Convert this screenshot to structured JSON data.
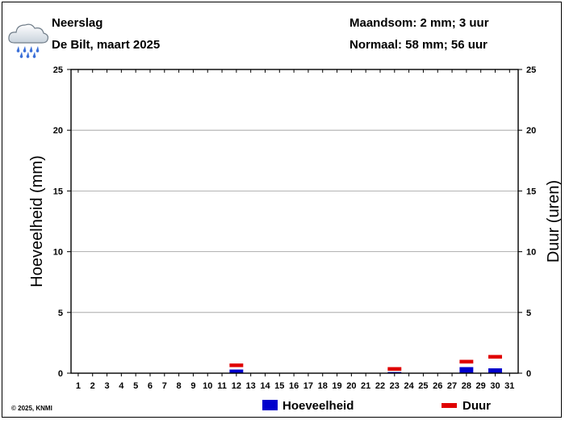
{
  "header": {
    "title": "Neerslag",
    "subtitle": "De Bilt, maart 2025",
    "month_sum": "Maandsom: 2 mm; 3 uur",
    "normal": "Normaal: 58 mm; 56 uur",
    "icon": "rain-cloud-icon"
  },
  "footer": {
    "copyright": "© 2025, KNMI"
  },
  "legend": {
    "amount_label": "Hoeveelheid",
    "duration_label": "Duur"
  },
  "colors": {
    "amount": "#0000cc",
    "duration": "#e00000",
    "grid": "#9a9a9a"
  },
  "chart_data": {
    "type": "bar",
    "xlabel": "",
    "ylabel_left": "Hoeveelheid (mm)",
    "ylabel_right": "Duur (uren)",
    "ylim": [
      0,
      25
    ],
    "y_ticks": [
      0,
      5,
      10,
      15,
      20,
      25
    ],
    "grid": true,
    "legend_position": "bottom",
    "categories": [
      "1",
      "2",
      "3",
      "4",
      "5",
      "6",
      "7",
      "8",
      "9",
      "10",
      "11",
      "12",
      "13",
      "14",
      "15",
      "16",
      "17",
      "18",
      "19",
      "20",
      "21",
      "22",
      "23",
      "24",
      "25",
      "26",
      "27",
      "28",
      "29",
      "30",
      "31"
    ],
    "series": [
      {
        "name": "Hoeveelheid",
        "unit": "mm",
        "values": [
          0,
          0,
          0,
          0,
          0,
          0,
          0,
          0,
          0,
          0,
          0,
          0.3,
          0,
          0,
          0,
          0,
          0,
          0,
          0,
          0,
          0,
          0,
          0.1,
          0,
          0,
          0,
          0,
          0.5,
          0,
          0.4,
          0
        ]
      },
      {
        "name": "Duur",
        "unit": "uren",
        "values": [
          0,
          0,
          0,
          0,
          0,
          0,
          0,
          0,
          0,
          0,
          0,
          0.6,
          0,
          0,
          0,
          0,
          0,
          0,
          0,
          0,
          0,
          0,
          0.3,
          0,
          0,
          0,
          0,
          0.9,
          0,
          1.3,
          0
        ]
      }
    ]
  }
}
